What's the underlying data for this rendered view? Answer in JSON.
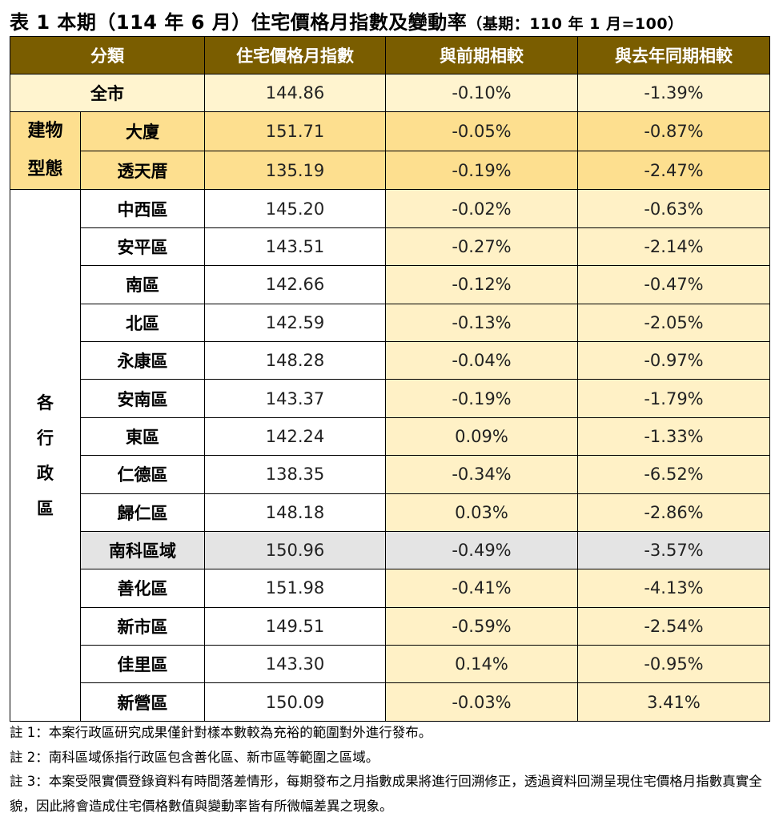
{
  "title": {
    "main": "表 1 本期（114 年 6 月）住宅價格月指數及變動率",
    "base": "（基期：110 年 1 月=100）"
  },
  "headers": [
    "分類",
    "住宅價格月指數",
    "與前期相較",
    "與去年同期相較"
  ],
  "whole_city": {
    "name": "全市",
    "index": "144.86",
    "mom": "-0.10%",
    "yoy": "-1.39%"
  },
  "building_type": {
    "group_label_1": "建物",
    "group_label_2": "型態",
    "rows": [
      {
        "name": "大廈",
        "index": "151.71",
        "mom": "-0.05%",
        "yoy": "-0.87%"
      },
      {
        "name": "透天厝",
        "index": "135.19",
        "mom": "-0.19%",
        "yoy": "-2.47%"
      }
    ]
  },
  "districts": {
    "group_label": [
      "各",
      "行",
      "政",
      "區"
    ],
    "rows": [
      {
        "name": "中西區",
        "index": "145.20",
        "mom": "-0.02%",
        "yoy": "-0.63%"
      },
      {
        "name": "安平區",
        "index": "143.51",
        "mom": "-0.27%",
        "yoy": "-2.14%"
      },
      {
        "name": "南區",
        "index": "142.66",
        "mom": "-0.12%",
        "yoy": "-0.47%"
      },
      {
        "name": "北區",
        "index": "142.59",
        "mom": "-0.13%",
        "yoy": "-2.05%"
      },
      {
        "name": "永康區",
        "index": "148.28",
        "mom": "-0.04%",
        "yoy": "-0.97%"
      },
      {
        "name": "安南區",
        "index": "143.37",
        "mom": "-0.19%",
        "yoy": "-1.79%"
      },
      {
        "name": "東區",
        "index": "142.24",
        "mom": "0.09%",
        "yoy": "-1.33%"
      },
      {
        "name": "仁德區",
        "index": "138.35",
        "mom": "-0.34%",
        "yoy": "-6.52%"
      },
      {
        "name": "歸仁區",
        "index": "148.18",
        "mom": "0.03%",
        "yoy": "-2.86%"
      },
      {
        "name": "南科區域",
        "index": "150.96",
        "mom": "-0.49%",
        "yoy": "-3.57%"
      },
      {
        "name": "善化區",
        "index": "151.98",
        "mom": "-0.41%",
        "yoy": "-4.13%"
      },
      {
        "name": "新市區",
        "index": "149.51",
        "mom": "-0.59%",
        "yoy": "-2.54%"
      },
      {
        "name": "佳里區",
        "index": "143.30",
        "mom": "0.14%",
        "yoy": "-0.95%"
      },
      {
        "name": "新營區",
        "index": "150.09",
        "mom": "-0.03%",
        "yoy": "3.41%"
      }
    ]
  },
  "notes": [
    "註 1：本案行政區研究成果僅針對樣本數較為充裕的範圍對外進行發布。",
    "註 2：南科區域係指行政區包含善化區、新市區等範圍之區域。",
    "註 3：本案受限實價登錄資料有時間落差情形，每期發布之月指數成果將進行回溯修正，透過資料回溯呈現住宅價格月指數真實全貌，因此將會造成住宅價格數值與變動率皆有所微幅差異之現象。"
  ],
  "colors": {
    "header_bg": "#7a5d00",
    "whole_city_bg": "#fff4cf",
    "building_type_bg": "#fddf8f",
    "change_bg": "#fff1c6",
    "highlight_row_bg": "#e4e4e4"
  }
}
